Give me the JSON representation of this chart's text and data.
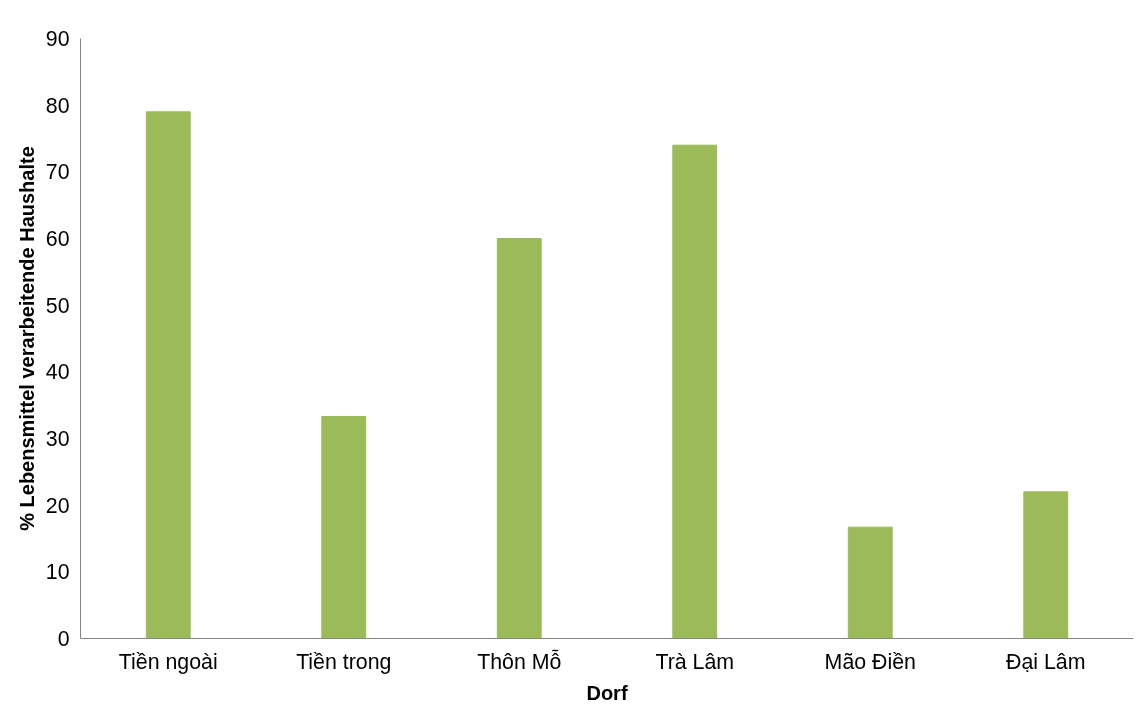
{
  "chart_data": {
    "type": "bar",
    "xlabel": "Dorf",
    "ylabel": "% Lebensmittel verarbeitende Haushalte",
    "categories": [
      "Tiền ngoài",
      "Tiền trong",
      "Thôn Mỗ",
      "Trà Lâm",
      "Mão Điền",
      "Đại Lâm"
    ],
    "values": [
      79,
      33.3,
      60,
      74,
      16.7,
      22
    ],
    "color": "#9bbb59",
    "ylim": [
      0,
      90
    ],
    "yticks": [
      0,
      10,
      20,
      30,
      40,
      50,
      60,
      70,
      80,
      90
    ],
    "grid": false
  }
}
